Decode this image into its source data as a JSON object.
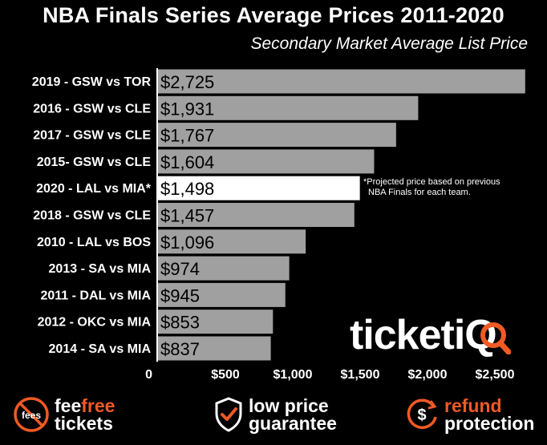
{
  "chart_data": {
    "type": "bar",
    "orientation": "horizontal",
    "title": "NBA Finals Series Average Prices 2011-2020",
    "subtitle": "Secondary Market Average List Price",
    "categories": [
      "2019 - GSW vs TOR",
      "2016 - GSW vs CLE",
      "2017 - GSW vs CLE",
      "2015- GSW vs CLE",
      "2020 - LAL vs MIA*",
      "2018 - GSW vs CLE",
      "2010 - LAL vs BOS",
      "2013 - SA vs MIA",
      "2011 - DAL vs MIA",
      "2012 - OKC vs MIA",
      "2014 - SA vs MIA"
    ],
    "values": [
      2725,
      1931,
      1767,
      1604,
      1498,
      1457,
      1096,
      974,
      945,
      853,
      837
    ],
    "value_labels": [
      "$2,725",
      "$1,931",
      "$1,767",
      "$1,604",
      "$1,498",
      "$1,457",
      "$1,096",
      "$974",
      "$945",
      "$853",
      "$837"
    ],
    "highlight_index": 4,
    "xlim": [
      0,
      2900
    ],
    "xticks": [
      0,
      500,
      1000,
      1500,
      2000,
      2500
    ],
    "xtick_labels": [
      "0",
      "$500",
      "$1,000",
      "$1,500",
      "$2,000",
      "$2,500"
    ],
    "bar_color": "#a0a0a0",
    "highlight_color": "#ffffff",
    "grid": false
  },
  "annotation": {
    "line1": "*Projected price based on previous",
    "line2": "NBA Finals for each team."
  },
  "brand": {
    "name": "ticketiQ"
  },
  "footer": {
    "fees": {
      "icon": "no-fees-icon",
      "badge": "fees",
      "line1_a": "fee",
      "line1_b": "free",
      "line2": "tickets"
    },
    "price": {
      "icon": "shield-check-icon",
      "line1": "low price",
      "line2": "guarantee"
    },
    "refund": {
      "icon": "dollar-circle-icon",
      "line1": "refund",
      "line2": "protection"
    }
  },
  "colors": {
    "accent": "#f05a24"
  }
}
